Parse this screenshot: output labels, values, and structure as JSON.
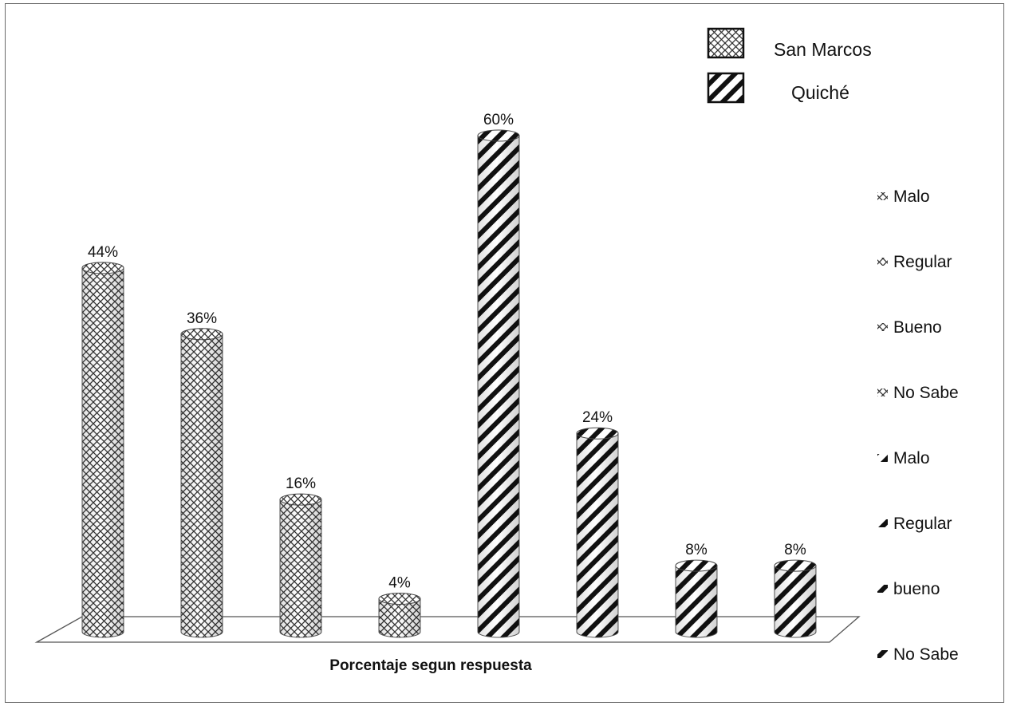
{
  "chart_data": {
    "type": "bar",
    "categories": [
      "Malo",
      "Regular",
      "Bueno",
      "No Sabe",
      "Malo",
      "Regular",
      "bueno",
      "No Sabe"
    ],
    "series": [
      {
        "name": "San Marcos",
        "values": [
          44,
          36,
          16,
          4,
          null,
          null,
          null,
          null
        ],
        "data_labels": [
          "44%",
          "36%",
          "16%",
          "4%",
          "",
          "",
          "",
          ""
        ],
        "pattern": "crosshatch"
      },
      {
        "name": "Quiché",
        "values": [
          null,
          null,
          null,
          null,
          60,
          24,
          8,
          8
        ],
        "data_labels": [
          "",
          "",
          "",
          "",
          "60%",
          "24%",
          "8%",
          "8%"
        ],
        "pattern": "diagonal"
      }
    ],
    "xlabel": "Porcentaje segun respuesta",
    "ylabel": "",
    "ylim": [
      0,
      60
    ],
    "grid": false,
    "legend": {
      "placement": "top-right",
      "entries": [
        "San Marcos",
        "Quiché"
      ]
    },
    "side_legend": {
      "placement": "right",
      "entries": [
        {
          "label": "Malo",
          "pattern": "crosshatch"
        },
        {
          "label": "Regular",
          "pattern": "crosshatch"
        },
        {
          "label": "Bueno",
          "pattern": "crosshatch"
        },
        {
          "label": "No Sabe",
          "pattern": "crosshatch"
        },
        {
          "label": "Malo",
          "pattern": "diagonal"
        },
        {
          "label": "Regular",
          "pattern": "diagonal"
        },
        {
          "label": "bueno",
          "pattern": "diagonal"
        },
        {
          "label": "No Sabe",
          "pattern": "diagonal"
        }
      ]
    },
    "colors": {
      "stroke": "#111111",
      "fill": "#ffffff",
      "border": "#6a6a6a"
    }
  }
}
